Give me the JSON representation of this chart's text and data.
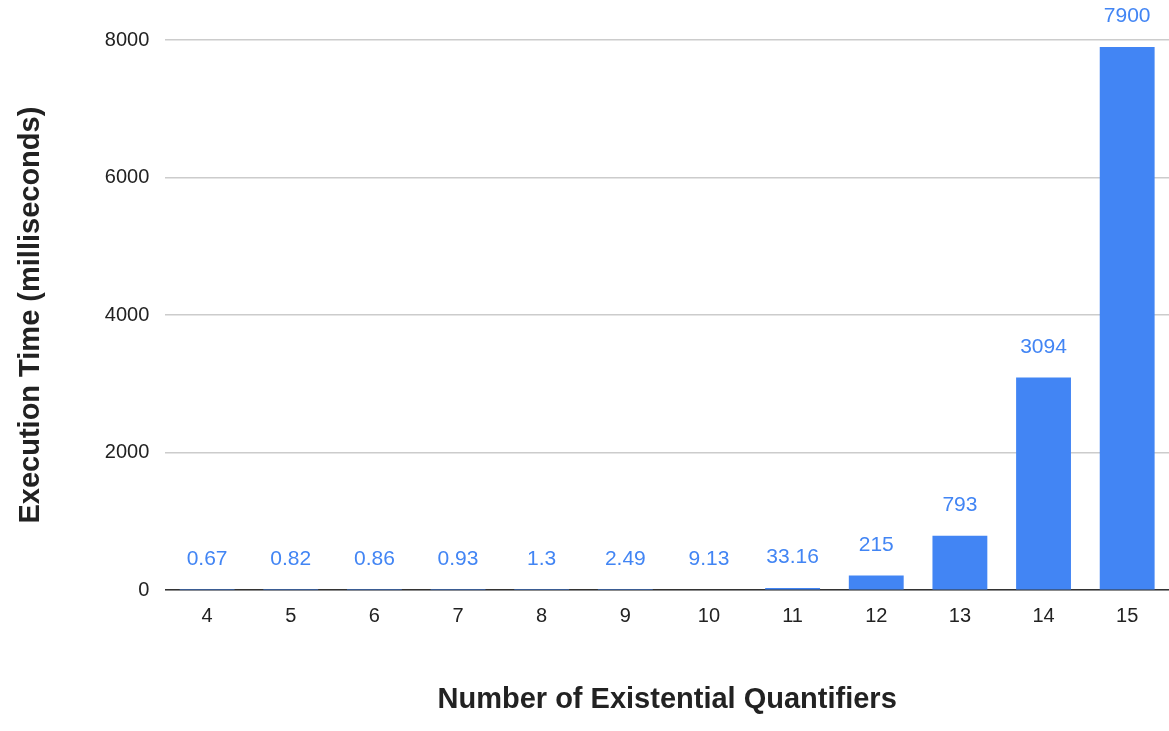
{
  "chart_data": {
    "type": "bar",
    "xlabel": "Number of Existential Quantifiers",
    "ylabel": "Execution Time (milliseconds)",
    "categories": [
      "4",
      "5",
      "6",
      "7",
      "8",
      "9",
      "10",
      "11",
      "12",
      "13",
      "14",
      "15"
    ],
    "values": [
      0.67,
      0.82,
      0.86,
      0.93,
      1.3,
      2.49,
      9.13,
      33.16,
      215,
      793,
      3094,
      7900
    ],
    "color": "#4285f4",
    "ylim": [
      0,
      8000
    ],
    "yticks": [
      0,
      2000,
      4000,
      6000,
      8000
    ],
    "grid": "y",
    "legend": false,
    "data_labels": true
  }
}
